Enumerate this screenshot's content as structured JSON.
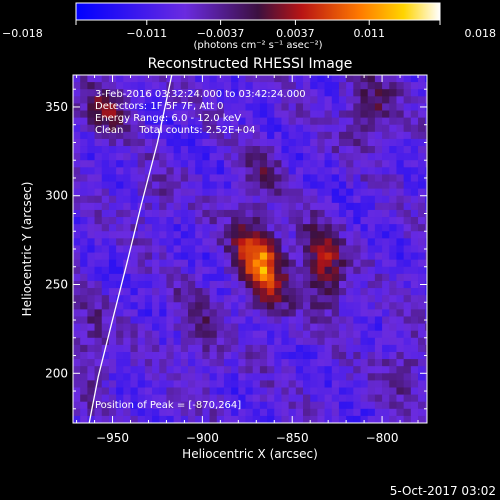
{
  "chart_data": {
    "type": "heatmap",
    "title": "Reconstructed RHESSI Image",
    "xlabel": "Heliocentric X (arcsec)",
    "ylabel": "Heliocentric Y (arcsec)",
    "xlim": [
      -972,
      -775
    ],
    "ylim": [
      172,
      368
    ],
    "x_ticks": [
      -950,
      -900,
      -850,
      -800
    ],
    "x_tick_labels": [
      "−950",
      "−900",
      "−850",
      "−800"
    ],
    "y_ticks": [
      200,
      250,
      300,
      350
    ],
    "y_tick_labels": [
      "200",
      "250",
      "300",
      "350"
    ],
    "colorbar": {
      "range": [
        -0.018,
        0.018
      ],
      "ticks": [
        -0.018,
        -0.011,
        -0.0037,
        0.0037,
        0.011,
        0.018
      ],
      "tick_labels": [
        "−0.018",
        "−0.011",
        "−0.0037",
        "0.0037",
        "0.011",
        "0.018"
      ],
      "units": "(photons cm⁻² s⁻¹ asec⁻²)"
    },
    "annotations": [
      "3-Feb-2016 03:32:24.000 to 03:42:24.000",
      "Detectors: 1F 5F 7F, Att 0",
      "Energy Range: 6.0 - 12.0 keV",
      "Clean     Total counts: 2.52E+04"
    ],
    "peak_label": "Position of Peak = [-870,264]",
    "peak": [
      -870,
      264
    ],
    "limb": [
      [
        -963,
        172
      ],
      [
        -958,
        198
      ],
      [
        -950,
        230
      ],
      [
        -942,
        262
      ],
      [
        -934,
        295
      ],
      [
        -925,
        330
      ],
      [
        -917,
        368
      ]
    ],
    "sources": [
      {
        "x": -870,
        "y": 264,
        "amp": 0.018,
        "sx": 9,
        "sy": 18,
        "rot": -0.25
      },
      {
        "x": -835,
        "y": 262,
        "amp": 0.013,
        "sx": 8,
        "sy": 16,
        "rot": -0.2
      },
      {
        "x": -868,
        "y": 315,
        "amp": 0.007,
        "sx": 6,
        "sy": 10,
        "rot": 0
      },
      {
        "x": -810,
        "y": 350,
        "amp": 0.008,
        "sx": 10,
        "sy": 14,
        "rot": 0
      },
      {
        "x": -955,
        "y": 352,
        "amp": 0.008,
        "sx": 10,
        "sy": 12,
        "rot": 0
      },
      {
        "x": -905,
        "y": 225,
        "amp": 0.006,
        "sx": 8,
        "sy": 16,
        "rot": -0.3
      },
      {
        "x": -965,
        "y": 215,
        "amp": 0.006,
        "sx": 8,
        "sy": 18,
        "rot": 0
      },
      {
        "x": -790,
        "y": 205,
        "amp": 0.006,
        "sx": 9,
        "sy": 12,
        "rot": 0
      },
      {
        "x": -930,
        "y": 300,
        "amp": 0.004,
        "sx": 9,
        "sy": 10,
        "rot": 0
      }
    ]
  },
  "footer": {
    "date_stamp": "5-Oct-2017 03:02"
  }
}
